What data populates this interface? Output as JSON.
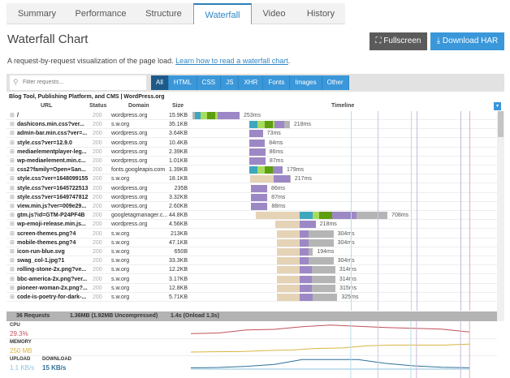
{
  "tabs": [
    "Summary",
    "Performance",
    "Structure",
    "Waterfall",
    "Video",
    "History"
  ],
  "active_tab": "Waterfall",
  "title": "Waterfall Chart",
  "buttons": {
    "fullscreen": "Fullscreen",
    "download": "Download HAR"
  },
  "description": {
    "text": "A request-by-request visualization of the page load. ",
    "link": "Learn how to read a waterfall chart",
    "end": "."
  },
  "filter": {
    "placeholder": "Filter requests...",
    "types": [
      "All",
      "HTML",
      "CSS",
      "JS",
      "XHR",
      "Fonts",
      "Images",
      "Other"
    ],
    "selected": "All"
  },
  "page_title": "Blog Tool, Publishing Platform, and CMS | WordPress.org",
  "columns": {
    "url": "URL",
    "status": "Status",
    "domain": "Domain",
    "size": "Size",
    "timeline": "Timeline"
  },
  "colors": {
    "blocked": "#b5b5b5",
    "dns": "#3fa6c0",
    "connect": "#a8dc5e",
    "ssl": "#5f9e10",
    "wait": "#9d88c6",
    "receive": "#b5b5b5",
    "queued": "#e5d3b6"
  },
  "timeline_range_ms": [
    0,
    1605
  ],
  "markers_ms": [
    {
      "ms": 850,
      "color": "#b8dcea"
    },
    {
      "ms": 996,
      "color": "#c8c8e0"
    },
    {
      "ms": 1173,
      "color": "#b8dcea"
    },
    {
      "ms": 1203,
      "color": "#c9b8d8"
    },
    {
      "ms": 1440,
      "color": "#c8b8d8"
    },
    {
      "ms": 1488,
      "color": "#e0b0b0"
    }
  ],
  "requests": [
    {
      "url": "/",
      "status": "200",
      "domain": "wordpress.org",
      "size": "15.9KB",
      "label": "253ms",
      "start": 0,
      "segments": [
        [
          "blocked",
          13
        ],
        [
          "dns",
          30
        ],
        [
          "connect",
          35
        ],
        [
          "ssl",
          44
        ],
        [
          "connect",
          13
        ],
        [
          "wait",
          118
        ]
      ]
    },
    {
      "url": "dashicons.min.css?ver...",
      "status": "200",
      "domain": "s.w.org",
      "size": "35.1KB",
      "label": "218ms",
      "start": 305,
      "segments": [
        [
          "dns",
          44
        ],
        [
          "connect",
          39
        ],
        [
          "ssl",
          44
        ],
        [
          "connect",
          9
        ],
        [
          "wait",
          52
        ],
        [
          "receive",
          30
        ]
      ]
    },
    {
      "url": "admin-bar.min.css?ver=...",
      "status": "200",
      "domain": "wordpress.org",
      "size": "3.64KB",
      "label": "73ms",
      "start": 305,
      "segments": [
        [
          "wait",
          73
        ]
      ]
    },
    {
      "url": "style.css?ver=12.9.0",
      "status": "200",
      "domain": "wordpress.org",
      "size": "10.4KB",
      "label": "84ms",
      "start": 305,
      "segments": [
        [
          "wait",
          84
        ]
      ]
    },
    {
      "url": "mediaelementplayer-leg...",
      "status": "200",
      "domain": "wordpress.org",
      "size": "2.39KB",
      "label": "86ms",
      "start": 305,
      "segments": [
        [
          "wait",
          86
        ]
      ]
    },
    {
      "url": "wp-mediaelement.min.c...",
      "status": "200",
      "domain": "wordpress.org",
      "size": "1.01KB",
      "label": "87ms",
      "start": 305,
      "segments": [
        [
          "wait",
          87
        ]
      ]
    },
    {
      "url": "css2?family=Open+San...",
      "status": "200",
      "domain": "fonts.googleapis.com",
      "size": "1.39KB",
      "label": "179ms",
      "start": 305,
      "segments": [
        [
          "dns",
          44
        ],
        [
          "connect",
          39
        ],
        [
          "ssl",
          44
        ],
        [
          "wait",
          52
        ]
      ]
    },
    {
      "url": "style.css?ver=1648099155",
      "status": "200",
      "domain": "s.w.org",
      "size": "18.1KB",
      "label": "217ms",
      "start": 310,
      "segments": [
        [
          "queued",
          126
        ],
        [
          "wait",
          87
        ],
        [
          "receive",
          4
        ]
      ]
    },
    {
      "url": "style.css?ver=1645722513",
      "status": "200",
      "domain": "wordpress.org",
      "size": "235B",
      "label": "86ms",
      "start": 315,
      "segments": [
        [
          "wait",
          86
        ]
      ]
    },
    {
      "url": "style.css?ver=1649747812",
      "status": "200",
      "domain": "wordpress.org",
      "size": "3.32KB",
      "label": "87ms",
      "start": 315,
      "segments": [
        [
          "wait",
          87
        ]
      ]
    },
    {
      "url": "view.min.js?ver=009e29...",
      "status": "200",
      "domain": "wordpress.org",
      "size": "2.60KB",
      "label": "88ms",
      "start": 315,
      "segments": [
        [
          "wait",
          88
        ]
      ]
    },
    {
      "url": "gtm.js?id=GTM-P24PF4B",
      "status": "200",
      "domain": "googletagmanager.c...",
      "size": "44.8KB",
      "label": "708ms",
      "start": 339,
      "segments": [
        [
          "queued",
          235
        ],
        [
          "dns",
          70
        ],
        [
          "connect",
          35
        ],
        [
          "ssl",
          70
        ],
        [
          "wait",
          131
        ],
        [
          "receive",
          167
        ]
      ]
    },
    {
      "url": "wp-emoji-release.min.js...",
      "status": "200",
      "domain": "wordpress.org",
      "size": "4.56KB",
      "label": "218ms",
      "start": 444,
      "segments": [
        [
          "queued",
          131
        ],
        [
          "wait",
          87
        ]
      ]
    },
    {
      "url": "screen-themes.png?4",
      "status": "200",
      "domain": "s.w.org",
      "size": "213KB",
      "label": "304ms",
      "start": 453,
      "segments": [
        [
          "queued",
          122
        ],
        [
          "wait",
          48
        ],
        [
          "receive",
          134
        ]
      ]
    },
    {
      "url": "mobile-themes.png?4",
      "status": "200",
      "domain": "s.w.org",
      "size": "47.1KB",
      "label": "304ms",
      "start": 453,
      "segments": [
        [
          "queued",
          122
        ],
        [
          "wait",
          48
        ],
        [
          "receive",
          134
        ]
      ]
    },
    {
      "url": "icon-run-blue.svg",
      "status": "200",
      "domain": "s.w.org",
      "size": "650B",
      "label": "194ms",
      "start": 453,
      "segments": [
        [
          "queued",
          122
        ],
        [
          "wait",
          48
        ],
        [
          "receive",
          24
        ]
      ]
    },
    {
      "url": "swag_col-1.jpg?1",
      "status": "200",
      "domain": "s.w.org",
      "size": "33.3KB",
      "label": "304ms",
      "start": 453,
      "segments": [
        [
          "queued",
          122
        ],
        [
          "wait",
          48
        ],
        [
          "receive",
          134
        ]
      ]
    },
    {
      "url": "rolling-stone-2x.png?ve...",
      "status": "200",
      "domain": "s.w.org",
      "size": "12.2KB",
      "label": "314ms",
      "start": 453,
      "segments": [
        [
          "queued",
          122
        ],
        [
          "wait",
          65
        ],
        [
          "receive",
          127
        ]
      ]
    },
    {
      "url": "bbc-america-2x.png?ver...",
      "status": "200",
      "domain": "s.w.org",
      "size": "3.17KB",
      "label": "314ms",
      "start": 453,
      "segments": [
        [
          "queued",
          122
        ],
        [
          "wait",
          65
        ],
        [
          "receive",
          127
        ]
      ]
    },
    {
      "url": "pioneer-woman-2x.png?...",
      "status": "200",
      "domain": "s.w.org",
      "size": "12.8KB",
      "label": "315ms",
      "start": 453,
      "segments": [
        [
          "queued",
          122
        ],
        [
          "wait",
          65
        ],
        [
          "receive",
          128
        ]
      ]
    },
    {
      "url": "code-is-poetry-for-dark-...",
      "status": "200",
      "domain": "s.w.org",
      "size": "5.71KB",
      "label": "325ms",
      "start": 453,
      "segments": [
        [
          "queued",
          122
        ],
        [
          "wait",
          70
        ],
        [
          "receive",
          133
        ]
      ]
    }
  ],
  "footer": {
    "requests": "36 Requests",
    "size": "1.36MB  (1.92MB Uncompressed)",
    "time": "1.4s  (Onload 1.3s)"
  },
  "metrics": {
    "cpu": {
      "label": "CPU",
      "value": "29.3%",
      "color": "#c0505a",
      "series": [
        0.25,
        0.3,
        0.55,
        0.6,
        0.82,
        0.95,
        0.85,
        0.75,
        0.68,
        0.62,
        0.38
      ]
    },
    "memory": {
      "label": "MEMORY",
      "value": "250 MB",
      "color": "#d9b440",
      "series": [
        0.15,
        0.18,
        0.2,
        0.3,
        0.35,
        0.5,
        0.55,
        0.75,
        0.82,
        0.82,
        0.82,
        0.9
      ]
    },
    "upload": {
      "label": "UPLOAD",
      "value": "1.1 KB/s",
      "color": "#8fc3df"
    },
    "download": {
      "label": "DOWNLOAD",
      "value": "15 KB/s",
      "color": "#2f6f9a",
      "series": [
        0.05,
        0.08,
        0.2,
        0.4,
        0.9,
        0.9,
        0.9,
        0.5,
        0.25,
        0.1,
        0.05
      ]
    }
  }
}
